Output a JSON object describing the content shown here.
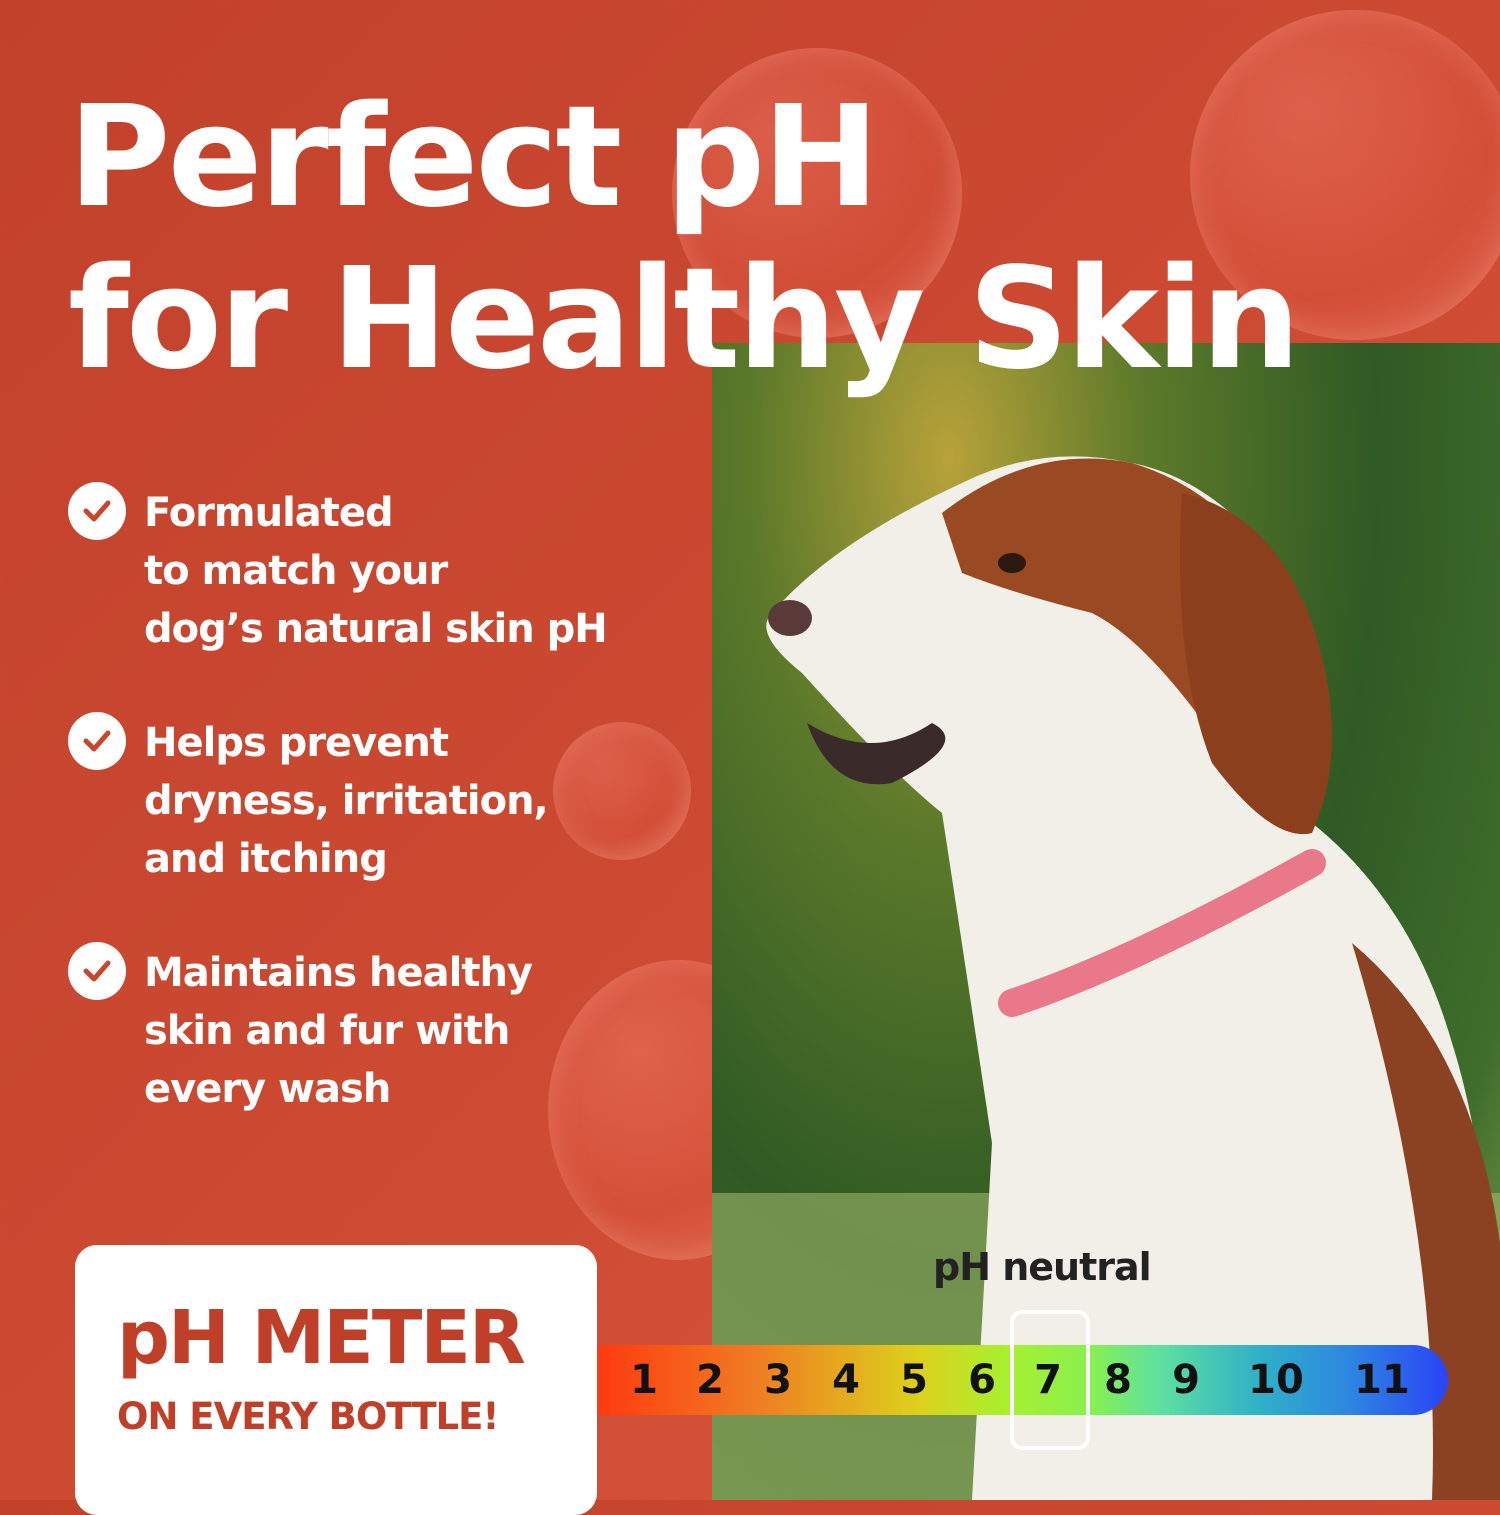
{
  "headline": {
    "line1": "Perfect pH",
    "line2": "for Healthy Skin"
  },
  "benefits": [
    {
      "icon": "check-circle-icon",
      "lines": [
        "Formulated",
        "to match your",
        "dog’s natural skin pH"
      ]
    },
    {
      "icon": "check-circle-icon",
      "lines": [
        "Helps prevent",
        "dryness, irritation,",
        "and itching"
      ]
    },
    {
      "icon": "check-circle-icon",
      "lines": [
        "Maintains healthy",
        "skin and fur with",
        "every wash"
      ]
    }
  ],
  "badge": {
    "title": "pH METER",
    "subtitle": "ON EVERY BOTTLE!"
  },
  "ph_scale": {
    "label": "pH neutral",
    "values": [
      "1",
      "2",
      "3",
      "4",
      "5",
      "6",
      "7",
      "8",
      "9",
      "10",
      "11"
    ],
    "highlighted": "7"
  },
  "colors": {
    "background": "#c8452e",
    "accent": "#bf3f28",
    "text": "#ffffff"
  }
}
